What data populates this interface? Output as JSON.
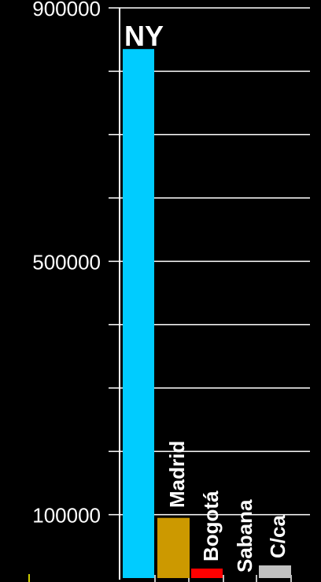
{
  "chart_data": {
    "type": "bar",
    "categories": [
      "NY",
      "Madrid",
      "Bogotá",
      "Sabana",
      "C/ca"
    ],
    "values": [
      835000,
      95000,
      15000,
      0,
      20000
    ],
    "colors": [
      "#00ccff",
      "#cc9900",
      "#ff0000",
      "#000000",
      "#c0c0c0"
    ],
    "ylim": [
      0,
      900000
    ],
    "yticks_labeled": [
      100000,
      500000,
      900000
    ],
    "ytick_labels": [
      "100000",
      "500000",
      "900000"
    ],
    "gridlines": [
      100000,
      200000,
      300000,
      400000,
      500000,
      600000,
      700000,
      800000,
      900000
    ],
    "grid": true,
    "background": "#000000",
    "grid_color": "#ffffff",
    "axis_color": "#ffffff"
  }
}
